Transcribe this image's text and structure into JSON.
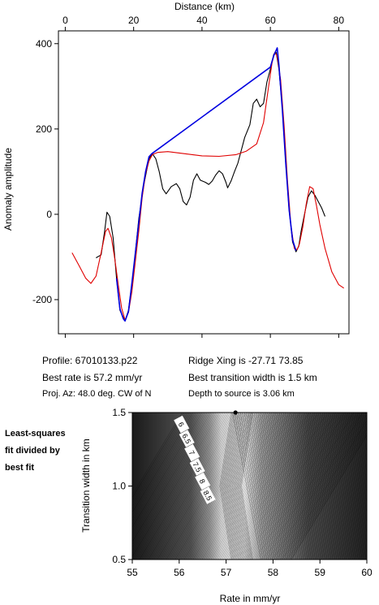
{
  "chart_data": [
    {
      "type": "line",
      "xlabel": "Distance (km)",
      "ylabel": "Anomaly amplitude",
      "xlim": [
        -2,
        83
      ],
      "ylim": [
        -280,
        430
      ],
      "x_ticks": [
        0,
        20,
        40,
        60,
        80
      ],
      "y_ticks": [
        -200,
        0,
        200,
        400
      ],
      "x_axis_position": "top",
      "grid": false,
      "series": [
        {
          "color": "#000000",
          "points": [
            [
              9,
              -102
            ],
            [
              10.5,
              -95
            ],
            [
              11.5,
              -40
            ],
            [
              12.2,
              5
            ],
            [
              13,
              -5
            ],
            [
              14,
              -55
            ],
            [
              15,
              -150
            ],
            [
              16,
              -225
            ],
            [
              17.5,
              -250
            ],
            [
              18.5,
              -225
            ],
            [
              20,
              -130
            ],
            [
              21.5,
              -10
            ],
            [
              23,
              70
            ],
            [
              24.5,
              130
            ],
            [
              25.5,
              142
            ],
            [
              26.5,
              130
            ],
            [
              27.5,
              100
            ],
            [
              28.5,
              60
            ],
            [
              29.5,
              48
            ],
            [
              31,
              65
            ],
            [
              32.5,
              72
            ],
            [
              33.5,
              60
            ],
            [
              34.5,
              30
            ],
            [
              35.5,
              22
            ],
            [
              36.5,
              40
            ],
            [
              37.5,
              80
            ],
            [
              38.5,
              95
            ],
            [
              39.5,
              80
            ],
            [
              41,
              75
            ],
            [
              42,
              70
            ],
            [
              43,
              78
            ],
            [
              44,
              92
            ],
            [
              45,
              102
            ],
            [
              46,
              95
            ],
            [
              47,
              75
            ],
            [
              47.5,
              62
            ],
            [
              48.5,
              78
            ],
            [
              49.5,
              100
            ],
            [
              50.5,
              120
            ],
            [
              51.5,
              150
            ],
            [
              52.5,
              180
            ],
            [
              54,
              210
            ],
            [
              55,
              260
            ],
            [
              56,
              270
            ],
            [
              57,
              252
            ],
            [
              58,
              260
            ],
            [
              59,
              310
            ],
            [
              60,
              340
            ],
            [
              61,
              375
            ],
            [
              61.7,
              380
            ],
            [
              62.5,
              340
            ],
            [
              63.5,
              250
            ],
            [
              64.5,
              120
            ],
            [
              65.5,
              10
            ],
            [
              66.5,
              -65
            ],
            [
              67.5,
              -88
            ],
            [
              68.3,
              -75
            ],
            [
              69,
              -40
            ],
            [
              70,
              0
            ],
            [
              71,
              40
            ],
            [
              72,
              55
            ],
            [
              73,
              45
            ],
            [
              74,
              30
            ],
            [
              75,
              15
            ],
            [
              76,
              -5
            ]
          ]
        },
        {
          "color": "#e00000",
          "points": [
            [
              2,
              -90
            ],
            [
              4,
              -120
            ],
            [
              6,
              -150
            ],
            [
              7.5,
              -162
            ],
            [
              9,
              -145
            ],
            [
              10.5,
              -90
            ],
            [
              11.8,
              -40
            ],
            [
              12.5,
              -33
            ],
            [
              13.5,
              -55
            ],
            [
              14.5,
              -105
            ],
            [
              15.5,
              -165
            ],
            [
              16.5,
              -220
            ],
            [
              17.5,
              -248
            ],
            [
              18.5,
              -230
            ],
            [
              19.5,
              -180
            ],
            [
              20.5,
              -110
            ],
            [
              21.5,
              -40
            ],
            [
              22.5,
              40
            ],
            [
              23.5,
              95
            ],
            [
              24.5,
              125
            ],
            [
              25.5,
              140
            ],
            [
              27,
              145
            ],
            [
              30,
              147
            ],
            [
              35,
              142
            ],
            [
              40,
              137
            ],
            [
              45,
              136
            ],
            [
              50,
              140
            ],
            [
              53,
              148
            ],
            [
              56,
              165
            ],
            [
              58,
              215
            ],
            [
              59.5,
              300
            ],
            [
              60.5,
              355
            ],
            [
              61.3,
              380
            ],
            [
              62,
              370
            ],
            [
              63,
              315
            ],
            [
              64,
              210
            ],
            [
              65,
              80
            ],
            [
              66,
              -25
            ],
            [
              67,
              -80
            ],
            [
              67.8,
              -83
            ],
            [
              68.5,
              -70
            ],
            [
              69.5,
              -30
            ],
            [
              70.5,
              25
            ],
            [
              71.5,
              65
            ],
            [
              72.5,
              60
            ],
            [
              73.5,
              20
            ],
            [
              74.5,
              -25
            ],
            [
              76,
              -80
            ],
            [
              78,
              -135
            ],
            [
              80,
              -165
            ],
            [
              81.5,
              -173
            ]
          ]
        },
        {
          "color": "#0000e0",
          "points": [
            [
              15,
              -150
            ],
            [
              16,
              -222
            ],
            [
              17,
              -245
            ],
            [
              17.5,
              -250
            ],
            [
              18.5,
              -228
            ],
            [
              19.5,
              -160
            ],
            [
              20.5,
              -90
            ],
            [
              21.5,
              -20
            ],
            [
              22.5,
              50
            ],
            [
              23.5,
              100
            ],
            [
              24.5,
              135
            ],
            [
              25.3,
              142
            ],
            [
              60,
              345
            ],
            [
              61,
              372
            ],
            [
              62,
              390
            ],
            [
              62.5,
              350
            ],
            [
              63.5,
              245
            ],
            [
              64.5,
              120
            ],
            [
              65.5,
              10
            ],
            [
              66.5,
              -60
            ],
            [
              67.5,
              -85
            ]
          ]
        }
      ]
    },
    {
      "type": "heatmap",
      "xlabel": "Rate in mm/yr",
      "ylabel": "Transition width in km",
      "xlim": [
        55,
        60
      ],
      "ylim": [
        0.5,
        1.5
      ],
      "x_ticks": [
        55,
        56,
        57,
        58,
        59,
        60
      ],
      "y_ticks": [
        0.5,
        1.0,
        1.5
      ],
      "contour_labels": [
        "6",
        "6.5",
        "7",
        "7.5",
        "8",
        "8.5"
      ],
      "best_fit_marker": {
        "rate": 57.2,
        "width": 1.5
      },
      "valley_rate_range": [
        56.9,
        57.5
      ]
    }
  ],
  "info": {
    "profile": "Profile: 67010133.p22",
    "best_rate": "Best rate is 57.2 mm/yr",
    "proj_az": "Proj. Az: 48.0 deg. CW of N",
    "ridge_xing": "Ridge Xing is -27.71 73.85",
    "best_transition": "Best transition width is 1.5 km",
    "depth": "Depth to source is   3.06 km"
  },
  "side_label": [
    "Least-squares",
    "fit divided by",
    "best fit"
  ]
}
